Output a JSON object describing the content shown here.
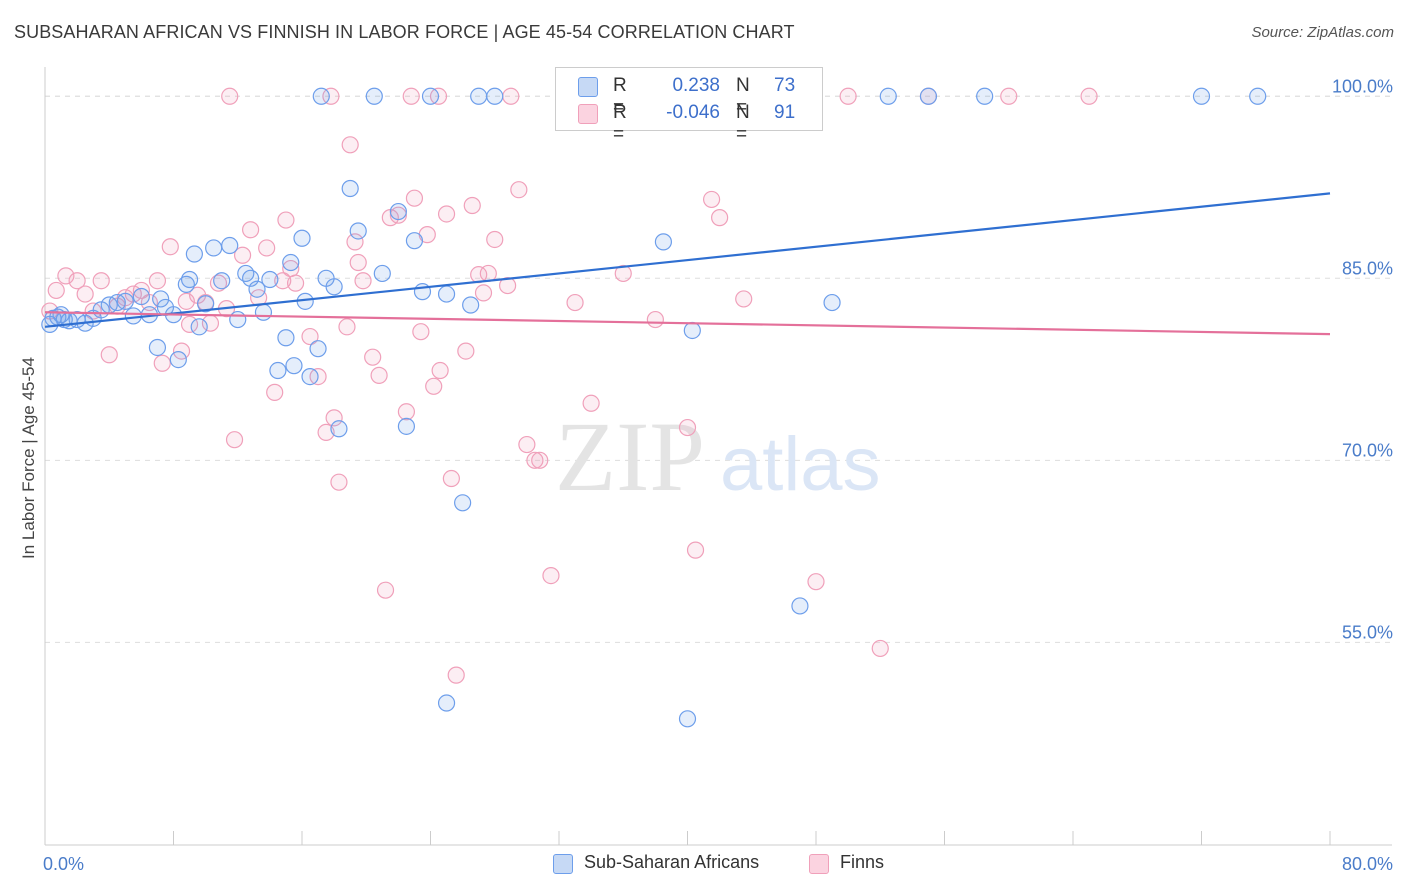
{
  "title": "SUBSAHARAN AFRICAN VS FINNISH IN LABOR FORCE | AGE 45-54 CORRELATION CHART",
  "source": "Source: ZipAtlas.com",
  "watermark": {
    "zip": "ZIP",
    "atlas": "atlas"
  },
  "legend": {
    "r_label": "R =",
    "n_label": "N =",
    "rows": [
      {
        "r": "0.238",
        "n": "73",
        "color": "#6d9eeb"
      },
      {
        "r": "-0.046",
        "n": "91",
        "color": "#f0a0ba"
      }
    ]
  },
  "bottom_legend": [
    "Sub-Saharan Africans",
    "Finns"
  ],
  "chart_data": {
    "type": "scatter",
    "xlabel": "",
    "ylabel": "In Labor Force | Age 45-54",
    "xlim": [
      0,
      80
    ],
    "ylim": [
      38.3,
      102
    ],
    "x_tick_labels": [
      "0.0%",
      "80.0%"
    ],
    "y_ticks": [
      55,
      70,
      85,
      100
    ],
    "y_tick_labels": [
      "55.0%",
      "70.0%",
      "85.0%",
      "100.0%"
    ],
    "grid": true,
    "legend_position": "top-center",
    "series": [
      {
        "name": "Sub-Saharan Africans",
        "color": "#6d9eeb",
        "trend": [
          [
            0,
            81.0
          ],
          [
            80,
            92.0
          ]
        ],
        "points": [
          [
            0.3,
            81.2
          ],
          [
            0.5,
            81.7
          ],
          [
            0.8,
            81.8
          ],
          [
            1.0,
            82.0
          ],
          [
            1.2,
            81.6
          ],
          [
            1.5,
            81.5
          ],
          [
            2.0,
            81.6
          ],
          [
            2.5,
            81.3
          ],
          [
            3.0,
            81.7
          ],
          [
            3.5,
            82.4
          ],
          [
            4.0,
            82.8
          ],
          [
            4.5,
            83.0
          ],
          [
            5.0,
            83.1
          ],
          [
            5.5,
            81.9
          ],
          [
            6.0,
            83.5
          ],
          [
            6.5,
            82.0
          ],
          [
            7.0,
            79.3
          ],
          [
            7.2,
            83.3
          ],
          [
            7.5,
            82.6
          ],
          [
            8.0,
            82.0
          ],
          [
            8.3,
            78.3
          ],
          [
            8.8,
            84.5
          ],
          [
            9.0,
            84.9
          ],
          [
            9.3,
            87.0
          ],
          [
            9.6,
            81.0
          ],
          [
            10.0,
            82.9
          ],
          [
            10.5,
            87.5
          ],
          [
            11.0,
            84.8
          ],
          [
            11.5,
            87.7
          ],
          [
            12.0,
            81.6
          ],
          [
            12.5,
            85.4
          ],
          [
            12.8,
            85.0
          ],
          [
            13.2,
            84.1
          ],
          [
            13.6,
            82.2
          ],
          [
            14.0,
            84.9
          ],
          [
            14.5,
            77.4
          ],
          [
            15.0,
            80.1
          ],
          [
            15.3,
            86.3
          ],
          [
            15.5,
            77.8
          ],
          [
            16.0,
            88.3
          ],
          [
            16.2,
            83.1
          ],
          [
            16.5,
            76.9
          ],
          [
            17.0,
            79.2
          ],
          [
            17.5,
            85.0
          ],
          [
            18.0,
            84.3
          ],
          [
            18.3,
            72.6
          ],
          [
            19.0,
            92.4
          ],
          [
            19.5,
            88.9
          ],
          [
            21.0,
            85.4
          ],
          [
            22.0,
            90.5
          ],
          [
            22.5,
            72.8
          ],
          [
            23.0,
            88.1
          ],
          [
            23.5,
            83.9
          ],
          [
            25.0,
            83.7
          ],
          [
            26.0,
            66.5
          ],
          [
            26.5,
            82.8
          ],
          [
            27.0,
            100.0
          ],
          [
            25.0,
            50.0
          ],
          [
            28.0,
            100.0
          ],
          [
            40.0,
            48.7
          ],
          [
            40.3,
            80.7
          ],
          [
            38.5,
            88.0
          ],
          [
            47.0,
            58.0
          ],
          [
            49.0,
            83.0
          ],
          [
            17.2,
            100.0
          ],
          [
            20.5,
            100.0
          ],
          [
            24.0,
            100.0
          ],
          [
            52.5,
            100.0
          ],
          [
            55.0,
            100.0
          ],
          [
            58.5,
            100.0
          ],
          [
            72.0,
            100.0
          ],
          [
            75.5,
            100.0
          ],
          [
            37.5,
            100.0
          ]
        ]
      },
      {
        "name": "Finns",
        "color": "#f0a0ba",
        "trend": [
          [
            0,
            82.2
          ],
          [
            80,
            80.4
          ]
        ],
        "points": [
          [
            0.3,
            82.3
          ],
          [
            0.7,
            84.0
          ],
          [
            1.3,
            85.2
          ],
          [
            2.0,
            84.8
          ],
          [
            2.5,
            83.7
          ],
          [
            3.0,
            82.3
          ],
          [
            3.5,
            84.8
          ],
          [
            4.0,
            78.7
          ],
          [
            4.5,
            82.7
          ],
          [
            5.0,
            83.4
          ],
          [
            5.5,
            83.7
          ],
          [
            6.0,
            84.0
          ],
          [
            6.5,
            83.0
          ],
          [
            7.0,
            84.8
          ],
          [
            7.3,
            78.0
          ],
          [
            7.8,
            87.6
          ],
          [
            8.5,
            79.0
          ],
          [
            8.8,
            83.1
          ],
          [
            9.0,
            81.2
          ],
          [
            9.5,
            83.6
          ],
          [
            10.0,
            83.0
          ],
          [
            10.3,
            81.3
          ],
          [
            10.8,
            84.6
          ],
          [
            11.3,
            82.5
          ],
          [
            11.8,
            71.7
          ],
          [
            12.3,
            86.9
          ],
          [
            12.8,
            89.0
          ],
          [
            13.3,
            83.4
          ],
          [
            13.8,
            87.5
          ],
          [
            14.3,
            75.6
          ],
          [
            14.8,
            84.8
          ],
          [
            15.0,
            89.8
          ],
          [
            15.3,
            85.8
          ],
          [
            15.6,
            84.6
          ],
          [
            16.5,
            80.2
          ],
          [
            17.0,
            76.9
          ],
          [
            17.5,
            72.3
          ],
          [
            18.0,
            73.5
          ],
          [
            18.3,
            68.2
          ],
          [
            18.8,
            81.0
          ],
          [
            19.0,
            96.0
          ],
          [
            19.3,
            88.0
          ],
          [
            19.5,
            86.3
          ],
          [
            19.8,
            84.8
          ],
          [
            20.4,
            78.5
          ],
          [
            20.8,
            77.0
          ],
          [
            21.2,
            59.3
          ],
          [
            21.5,
            90.0
          ],
          [
            22.0,
            90.2
          ],
          [
            22.5,
            74.0
          ],
          [
            23.0,
            91.6
          ],
          [
            23.4,
            80.6
          ],
          [
            23.8,
            88.6
          ],
          [
            24.2,
            76.1
          ],
          [
            24.6,
            77.4
          ],
          [
            25.0,
            90.3
          ],
          [
            25.3,
            68.5
          ],
          [
            25.6,
            52.3
          ],
          [
            26.2,
            79.0
          ],
          [
            26.6,
            91.0
          ],
          [
            27.0,
            85.3
          ],
          [
            27.3,
            83.8
          ],
          [
            27.6,
            85.4
          ],
          [
            28.0,
            88.2
          ],
          [
            28.8,
            84.4
          ],
          [
            29.5,
            92.3
          ],
          [
            30.0,
            71.3
          ],
          [
            30.5,
            70.0
          ],
          [
            30.8,
            70.0
          ],
          [
            31.5,
            60.5
          ],
          [
            33.0,
            83.0
          ],
          [
            34.0,
            74.7
          ],
          [
            36.0,
            85.4
          ],
          [
            38.0,
            81.6
          ],
          [
            40.0,
            72.7
          ],
          [
            40.5,
            62.6
          ],
          [
            41.5,
            91.5
          ],
          [
            42.0,
            90.0
          ],
          [
            43.5,
            83.3
          ],
          [
            48.0,
            60.0
          ],
          [
            52.0,
            54.5
          ],
          [
            55.0,
            100.0
          ],
          [
            60.0,
            100.0
          ],
          [
            22.8,
            100.0
          ],
          [
            35.0,
            100.0
          ],
          [
            24.5,
            100.0
          ],
          [
            29.0,
            100.0
          ],
          [
            11.5,
            100.0
          ],
          [
            17.8,
            100.0
          ],
          [
            50.0,
            100.0
          ],
          [
            65.0,
            100.0
          ]
        ]
      }
    ]
  }
}
